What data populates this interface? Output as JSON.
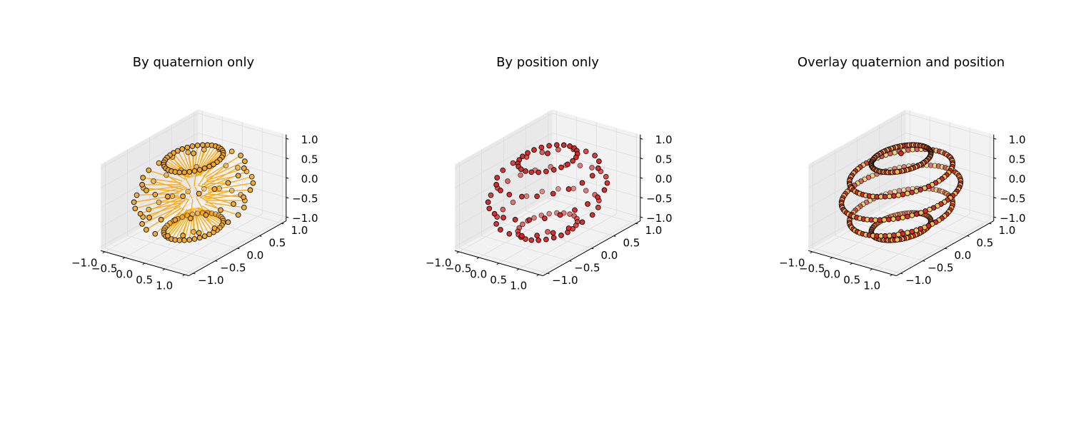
{
  "chart_data": [
    {
      "type": "scatter",
      "projection": "3d",
      "title": "By quaternion only",
      "xlim": [
        -1.0,
        1.0
      ],
      "ylim": [
        -1.0,
        1.0
      ],
      "zlim": [
        -1.0,
        1.0
      ],
      "xticks": [
        "−1.0",
        "−0.5",
        "0.0",
        "0.5",
        "1.0"
      ],
      "yticks": [
        "−1.0",
        "−0.5",
        "0.0",
        "0.5",
        "1.0"
      ],
      "zticks": [
        "−1.0",
        "−0.5",
        "0.0",
        "0.5",
        "1.0"
      ],
      "grid": true,
      "marker_color": "#f5a623",
      "vector_color": "#ffa500",
      "edge_color": "#000000",
      "series": [
        {
          "kind": "points_with_direction_vectors",
          "rings": [
            {
              "z": 1.0,
              "n": 1
            },
            {
              "z": 0.866,
              "n": 36
            },
            {
              "z": 0.5,
              "n": 20
            },
            {
              "z": 0.0,
              "n": 24
            },
            {
              "z": -0.5,
              "n": 20
            },
            {
              "z": -0.866,
              "n": 36
            },
            {
              "z": -1.0,
              "n": 1
            }
          ]
        }
      ]
    },
    {
      "type": "scatter",
      "projection": "3d",
      "title": "By position only",
      "xlim": [
        -1.0,
        1.0
      ],
      "ylim": [
        -1.0,
        1.0
      ],
      "zlim": [
        -1.0,
        1.0
      ],
      "xticks": [
        "−1.0",
        "−0.5",
        "0.0",
        "0.5",
        "1.0"
      ],
      "yticks": [
        "−1.0",
        "−0.5",
        "0.0",
        "0.5",
        "1.0"
      ],
      "zticks": [
        "−1.0",
        "−0.5",
        "0.0",
        "0.5",
        "1.0"
      ],
      "grid": true,
      "marker_color": "#dd2222",
      "edge_color": "#000000",
      "series": [
        {
          "kind": "points",
          "rings": [
            {
              "z": 1.0,
              "n": 1
            },
            {
              "z": 0.866,
              "n": 24
            },
            {
              "z": 0.5,
              "n": 20
            },
            {
              "z": 0.0,
              "n": 24
            },
            {
              "z": -0.5,
              "n": 20
            },
            {
              "z": -0.866,
              "n": 24
            },
            {
              "z": -1.0,
              "n": 1
            }
          ]
        }
      ]
    },
    {
      "type": "scatter",
      "projection": "3d",
      "title": "Overlay quaternion and position",
      "xlim": [
        -1.0,
        1.0
      ],
      "ylim": [
        -1.0,
        1.0
      ],
      "zlim": [
        -1.0,
        1.0
      ],
      "xticks": [
        "−1.0",
        "−0.5",
        "0.0",
        "0.5",
        "1.0"
      ],
      "yticks": [
        "−1.0",
        "−0.5",
        "0.0",
        "0.5",
        "1.0"
      ],
      "zticks": [
        "−1.0",
        "−0.5",
        "0.0",
        "0.5",
        "1.0"
      ],
      "grid": true,
      "edge_color": "#000000",
      "series": [
        {
          "kind": "points",
          "color": "#dd2222",
          "rings": [
            {
              "z": 1.0,
              "n": 1
            },
            {
              "z": 0.866,
              "n": 40
            },
            {
              "z": 0.5,
              "n": 36
            },
            {
              "z": 0.0,
              "n": 40
            },
            {
              "z": -0.5,
              "n": 36
            },
            {
              "z": -0.866,
              "n": 40
            },
            {
              "z": -1.0,
              "n": 1
            }
          ]
        },
        {
          "kind": "points",
          "color": "#f2c84b",
          "rings": [
            {
              "z": 0.866,
              "n": 40
            },
            {
              "z": 0.5,
              "n": 36
            },
            {
              "z": 0.0,
              "n": 40
            },
            {
              "z": -0.5,
              "n": 36
            },
            {
              "z": -0.866,
              "n": 40
            }
          ]
        }
      ]
    }
  ]
}
